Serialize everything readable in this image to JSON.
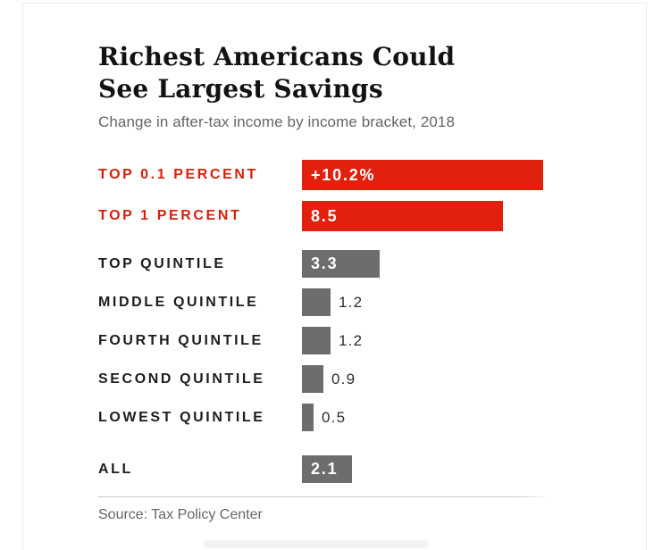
{
  "header": {
    "title": "Richest Americans Could See Largest Savings",
    "subtitle": "Change in after-tax income by income bracket, 2018"
  },
  "footer": {
    "source": "Source: Tax Policy Center"
  },
  "colors": {
    "red_bar": "#e1200e",
    "red_label": "#d6210c",
    "gray_bar": "#6d6d6d",
    "dark_label": "#1d1d1d",
    "value_in": "#ffffff",
    "value_out": "#2e2e2e"
  },
  "chart_data": {
    "type": "bar",
    "orientation": "horizontal",
    "title": "Richest Americans Could See Largest Savings",
    "subtitle": "Change in after-tax income by income bracket, 2018",
    "unit": "percent change in after-tax income",
    "xlim": [
      0,
      10.2
    ],
    "grid": false,
    "legend": false,
    "categories": [
      "TOP 0.1 PERCENT",
      "TOP 1 PERCENT",
      "TOP QUINTILE",
      "MIDDLE QUINTILE",
      "FOURTH QUINTILE",
      "SECOND QUINTILE",
      "LOWEST QUINTILE",
      "ALL"
    ],
    "values": [
      10.2,
      8.5,
      3.3,
      1.2,
      1.2,
      0.9,
      0.5,
      2.1
    ],
    "rows": [
      {
        "label": "TOP 0.1 PERCENT",
        "value": 10.2,
        "display": "+10.2%",
        "color": "red",
        "value_inside": true,
        "group": "top"
      },
      {
        "label": "TOP 1 PERCENT",
        "value": 8.5,
        "display": "8.5",
        "color": "red",
        "value_inside": true,
        "group": "top"
      },
      {
        "label": "TOP QUINTILE",
        "value": 3.3,
        "display": "3.3",
        "color": "gray",
        "value_inside": true,
        "group": "quintiles"
      },
      {
        "label": "MIDDLE QUINTILE",
        "value": 1.2,
        "display": "1.2",
        "color": "gray",
        "value_inside": false,
        "group": "quintiles"
      },
      {
        "label": "FOURTH QUINTILE",
        "value": 1.2,
        "display": "1.2",
        "color": "gray",
        "value_inside": false,
        "group": "quintiles"
      },
      {
        "label": "SECOND QUINTILE",
        "value": 0.9,
        "display": "0.9",
        "color": "gray",
        "value_inside": false,
        "group": "quintiles"
      },
      {
        "label": "LOWEST QUINTILE",
        "value": 0.5,
        "display": "0.5",
        "color": "gray",
        "value_inside": false,
        "group": "quintiles"
      },
      {
        "label": "ALL",
        "value": 2.1,
        "display": "2.1",
        "color": "gray",
        "value_inside": true,
        "group": "all"
      }
    ],
    "source": "Source: Tax Policy Center"
  }
}
